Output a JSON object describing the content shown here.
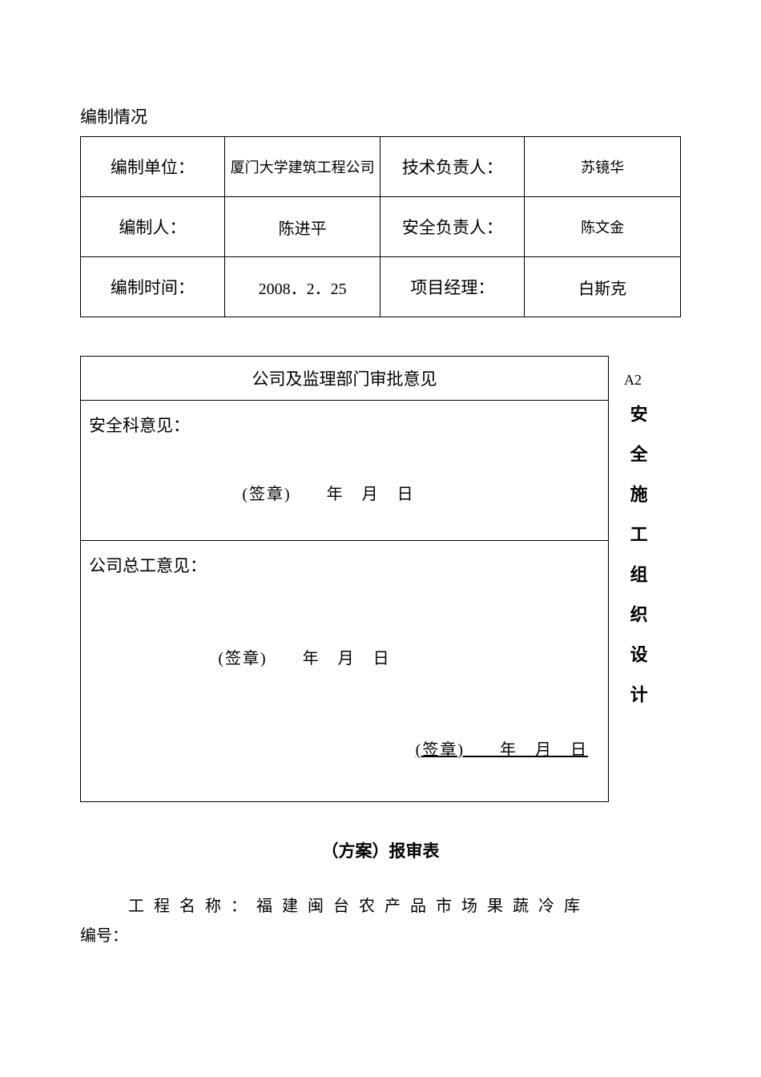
{
  "section_title": "编制情况",
  "info_table": {
    "row1": {
      "label1": "编制单位：",
      "value1": "厦门大学建筑工程公司",
      "label2": "技术负责人：",
      "value2": "苏镜华"
    },
    "row2": {
      "label1": "编制人：",
      "value1": "陈进平",
      "label2": "安全负责人：",
      "value2": "陈文金"
    },
    "row3": {
      "label1": "编制时间：",
      "value1": "2008．2．25",
      "label2": "项目经理：",
      "value2": "白斯克"
    }
  },
  "approval": {
    "header": "公司及监理部门审批意见",
    "safety_label": "安全科意见：",
    "company_label": "公司总工意见：",
    "signature1": "(签章)　　年　月　日",
    "signature2": "(签章)　　年　月　日",
    "signature3": "(签章)　　年　月　日"
  },
  "side": {
    "code": "A2",
    "vertical_text": "安全施工组织设计"
  },
  "bottom": {
    "form_title": "（方案）报审表",
    "project_label": "工程名称：福建闽台农产品市场果蔬冷库",
    "number_label": "编号："
  }
}
